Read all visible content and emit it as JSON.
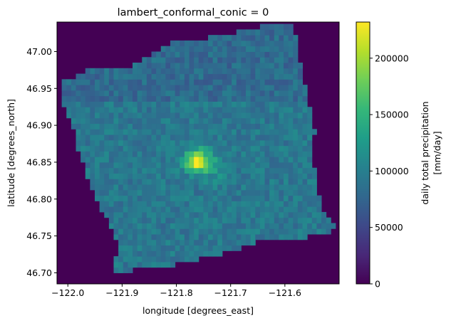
{
  "chart_data": {
    "type": "heatmap",
    "title": "lambert_conformal_conic = 0",
    "xlabel": "longitude [degrees_east]",
    "ylabel": "latitude [degrees_north]",
    "colorbar_label_line1": "daily total precipitation",
    "colorbar_label_line2": "[mm/day]",
    "colormap": "viridis",
    "xlim": [
      -122.02,
      -121.5
    ],
    "ylim": [
      46.685,
      47.04
    ],
    "xticks": [
      -122.0,
      -121.9,
      -121.8,
      -121.7,
      -121.6
    ],
    "xtick_labels": [
      "−122.0",
      "−121.9",
      "−121.8",
      "−121.7",
      "−121.6"
    ],
    "yticks": [
      46.7,
      46.75,
      46.8,
      46.85,
      46.9,
      46.95,
      47.0
    ],
    "ytick_labels": [
      "46.70",
      "46.75",
      "46.80",
      "46.85",
      "46.90",
      "46.95",
      "47.00"
    ],
    "clim": [
      0,
      232000
    ],
    "cticks": [
      0,
      50000,
      100000,
      150000,
      200000
    ],
    "ctick_labels": [
      "0",
      "50000",
      "100000",
      "150000",
      "200000"
    ],
    "background_value": 0,
    "grid_cell": {
      "dlon": 0.0087,
      "dlat": 0.0075
    },
    "peak": {
      "lon": -121.762,
      "lat": 46.852,
      "value": 230000
    },
    "secondary_max": {
      "lon": -121.73,
      "lat": 46.843,
      "value": 140000
    },
    "typical_range": [
      60000,
      120000
    ],
    "domain_outline": [
      [
        -122.01,
        46.96
      ],
      [
        -121.96,
        46.975
      ],
      [
        -121.9,
        46.975
      ],
      [
        -121.86,
        46.99
      ],
      [
        -121.82,
        47.01
      ],
      [
        -121.73,
        47.02
      ],
      [
        -121.66,
        47.03
      ],
      [
        -121.62,
        47.04
      ],
      [
        -121.585,
        47.035
      ],
      [
        -121.57,
        46.98
      ],
      [
        -121.555,
        46.925
      ],
      [
        -121.545,
        46.89
      ],
      [
        -121.55,
        46.86
      ],
      [
        -121.54,
        46.81
      ],
      [
        -121.53,
        46.78
      ],
      [
        -121.505,
        46.76
      ],
      [
        -121.53,
        46.75
      ],
      [
        -121.58,
        46.748
      ],
      [
        -121.64,
        46.745
      ],
      [
        -121.7,
        46.73
      ],
      [
        -121.75,
        46.72
      ],
      [
        -121.81,
        46.71
      ],
      [
        -121.87,
        46.705
      ],
      [
        -121.91,
        46.7
      ],
      [
        -121.92,
        46.69
      ],
      [
        -121.905,
        46.74
      ],
      [
        -121.93,
        46.775
      ],
      [
        -121.96,
        46.82
      ],
      [
        -121.98,
        46.865
      ],
      [
        -121.99,
        46.9
      ],
      [
        -122.01,
        46.93
      ]
    ]
  }
}
